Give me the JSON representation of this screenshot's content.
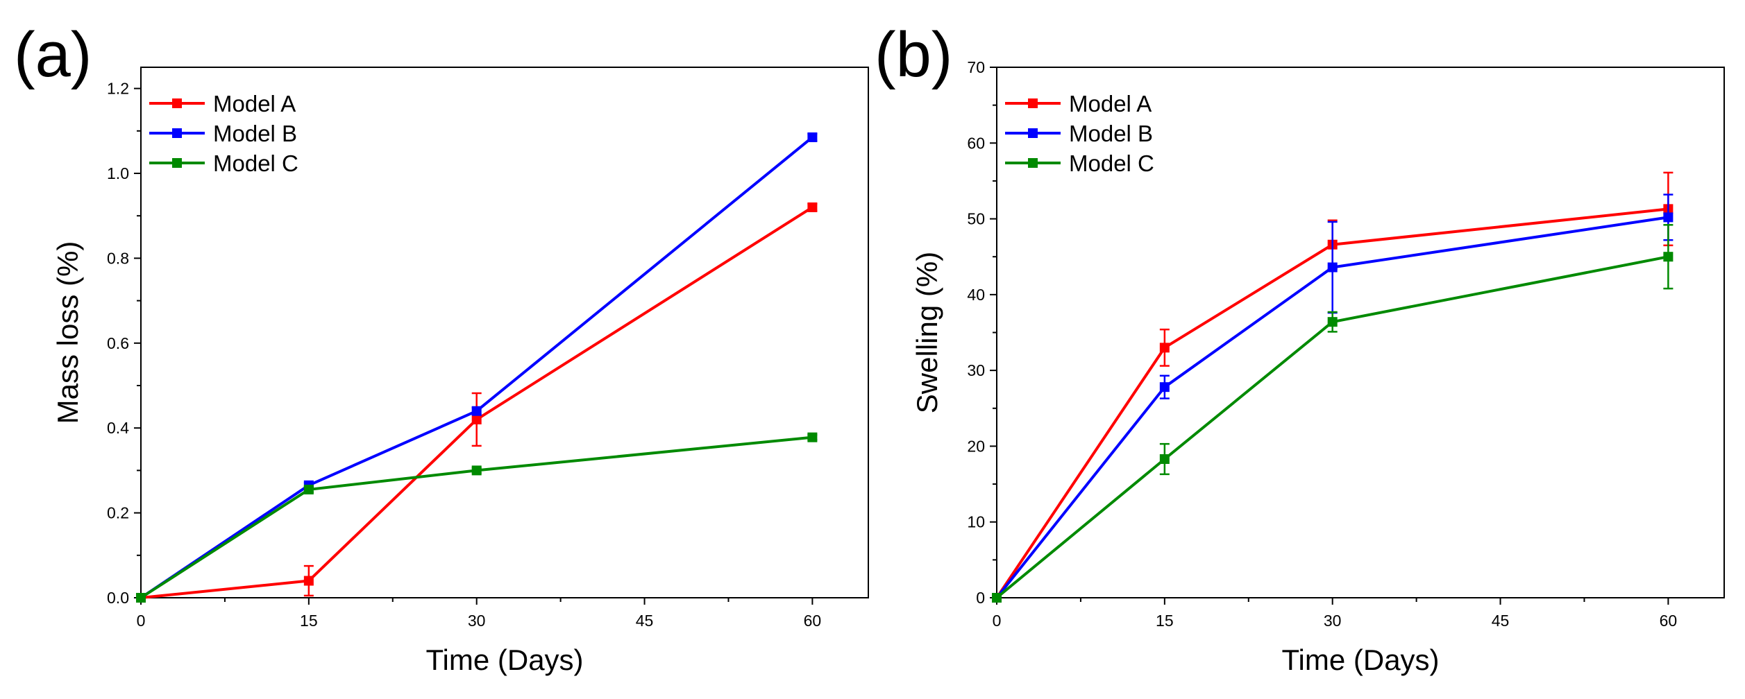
{
  "chart_data": [
    {
      "type": "line",
      "panel_label": "(a)",
      "xlabel": "Time (Days)",
      "ylabel": "Mass loss (%)",
      "xlim": [
        0,
        65
      ],
      "ylim": [
        0,
        1.25
      ],
      "xticks": [
        0,
        15,
        30,
        45,
        60
      ],
      "yticks": [
        0.0,
        0.2,
        0.4,
        0.6,
        0.8,
        1.0,
        1.2
      ],
      "ytick_decimals": 1,
      "legend_position": "top-left",
      "grid": false,
      "x": [
        0,
        15,
        30,
        60
      ],
      "series": [
        {
          "name": "Model A",
          "color": "#ff0000",
          "values": [
            0,
            0.04,
            0.42,
            0.92
          ],
          "errors": [
            0,
            0.035,
            0.062,
            0.008
          ]
        },
        {
          "name": "Model B",
          "color": "#0000ff",
          "values": [
            0,
            0.265,
            0.44,
            1.085
          ],
          "errors": [
            0,
            0.006,
            0.008,
            0.008
          ]
        },
        {
          "name": "Model C",
          "color": "#008a00",
          "values": [
            0,
            0.255,
            0.3,
            0.378
          ],
          "errors": [
            0,
            0.006,
            0.006,
            0.006
          ]
        }
      ]
    },
    {
      "type": "line",
      "panel_label": "(b)",
      "xlabel": "Time (Days)",
      "ylabel": "Swelling (%)",
      "xlim": [
        0,
        65
      ],
      "ylim": [
        0,
        70
      ],
      "xticks": [
        0,
        15,
        30,
        45,
        60
      ],
      "yticks": [
        0,
        10,
        20,
        30,
        40,
        50,
        60,
        70
      ],
      "ytick_decimals": 0,
      "legend_position": "top-left",
      "grid": false,
      "x": [
        0,
        15,
        30,
        60
      ],
      "series": [
        {
          "name": "Model A",
          "color": "#ff0000",
          "values": [
            0,
            33.0,
            46.6,
            51.3
          ],
          "errors": [
            0,
            2.4,
            3.2,
            4.8
          ]
        },
        {
          "name": "Model B",
          "color": "#0000ff",
          "values": [
            0,
            27.8,
            43.6,
            50.2
          ],
          "errors": [
            0,
            1.5,
            6.0,
            3.0
          ]
        },
        {
          "name": "Model C",
          "color": "#008a00",
          "values": [
            0,
            18.3,
            36.4,
            45.0
          ],
          "errors": [
            0,
            2.0,
            1.3,
            4.2
          ]
        }
      ]
    }
  ]
}
